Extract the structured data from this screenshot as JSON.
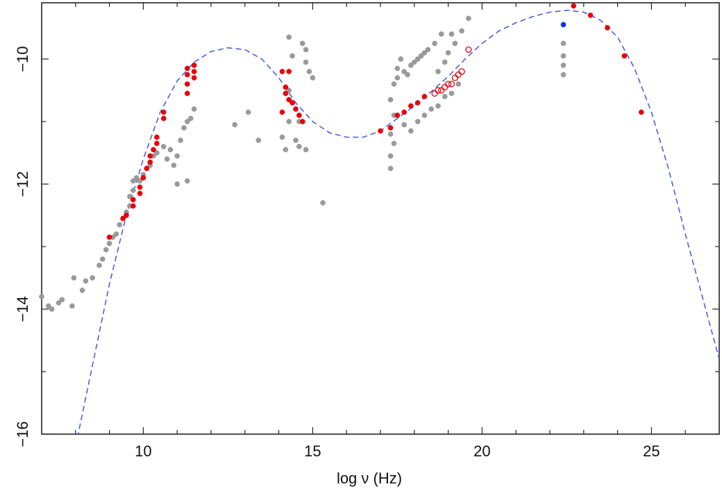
{
  "chart_data": {
    "type": "scatter",
    "title": "",
    "xlabel": "log ν (Hz)",
    "ylabel": "",
    "xlim": [
      7,
      27
    ],
    "ylim": [
      -16,
      -9.1
    ],
    "xticks": [
      10,
      15,
      20,
      25
    ],
    "xtick_labels": [
      "10",
      "15",
      "20",
      "25"
    ],
    "yticks": [
      -16,
      -14,
      -12,
      -10
    ],
    "ytick_labels": [
      "−16",
      "−14",
      "−12",
      "−10"
    ],
    "grid": false,
    "colors": {
      "archival": "#9a9a9a",
      "simultaneous": "#e8000b",
      "gamma_blue": "#1030e0",
      "model_curve": "#4a5fe0"
    },
    "series": [
      {
        "style": "archival-grey-filled",
        "color": "#9a9a9a",
        "points": [
          [
            7.0,
            -13.8
          ],
          [
            7.2,
            -13.95
          ],
          [
            7.3,
            -14.0
          ],
          [
            7.5,
            -13.9
          ],
          [
            7.6,
            -13.85
          ],
          [
            7.9,
            -13.95
          ],
          [
            7.95,
            -13.5
          ],
          [
            8.2,
            -13.7
          ],
          [
            8.3,
            -13.55
          ],
          [
            8.5,
            -13.5
          ],
          [
            8.7,
            -13.3
          ],
          [
            8.8,
            -13.2
          ],
          [
            8.9,
            -13.05
          ],
          [
            9.0,
            -12.95
          ],
          [
            9.1,
            -12.85
          ],
          [
            9.2,
            -12.8
          ],
          [
            9.3,
            -12.65
          ],
          [
            9.4,
            -12.55
          ],
          [
            9.5,
            -12.45
          ],
          [
            9.6,
            -12.35
          ],
          [
            9.6,
            -12.2
          ],
          [
            9.7,
            -12.1
          ],
          [
            9.7,
            -11.95
          ],
          [
            9.8,
            -11.9
          ],
          [
            9.9,
            -11.95
          ],
          [
            10.0,
            -11.85
          ],
          [
            10.1,
            -11.75
          ],
          [
            10.2,
            -11.7
          ],
          [
            10.3,
            -11.55
          ],
          [
            10.4,
            -11.5
          ],
          [
            10.6,
            -11.4
          ],
          [
            10.7,
            -11.6
          ],
          [
            10.8,
            -11.45
          ],
          [
            10.9,
            -11.7
          ],
          [
            11.0,
            -11.55
          ],
          [
            11.1,
            -11.3
          ],
          [
            11.2,
            -11.1
          ],
          [
            11.3,
            -11.0
          ],
          [
            11.4,
            -10.95
          ],
          [
            11.5,
            -10.8
          ],
          [
            11.0,
            -12.0
          ],
          [
            11.3,
            -11.95
          ],
          [
            12.7,
            -11.05
          ],
          [
            13.1,
            -10.85
          ],
          [
            13.4,
            -11.3
          ],
          [
            14.1,
            -11.25
          ],
          [
            14.2,
            -11.45
          ],
          [
            14.3,
            -11.0
          ],
          [
            14.3,
            -9.65
          ],
          [
            14.4,
            -9.95
          ],
          [
            14.5,
            -11.3
          ],
          [
            14.6,
            -11.4
          ],
          [
            14.7,
            -9.75
          ],
          [
            14.8,
            -9.85
          ],
          [
            14.8,
            -10.05
          ],
          [
            14.9,
            -10.2
          ],
          [
            15.0,
            -10.3
          ],
          [
            14.6,
            -11.0
          ],
          [
            14.8,
            -11.45
          ],
          [
            14.3,
            -10.5
          ],
          [
            15.3,
            -12.3
          ],
          [
            17.3,
            -11.75
          ],
          [
            17.3,
            -11.55
          ],
          [
            17.4,
            -11.35
          ],
          [
            17.3,
            -11.2
          ],
          [
            17.4,
            -10.9
          ],
          [
            17.3,
            -10.65
          ],
          [
            17.4,
            -10.4
          ],
          [
            17.5,
            -10.15
          ],
          [
            17.5,
            -10.3
          ],
          [
            17.6,
            -10.0
          ],
          [
            17.7,
            -10.2
          ],
          [
            17.8,
            -10.25
          ],
          [
            17.9,
            -10.1
          ],
          [
            18.0,
            -10.05
          ],
          [
            18.1,
            -10.0
          ],
          [
            18.2,
            -9.95
          ],
          [
            18.3,
            -9.9
          ],
          [
            18.4,
            -9.85
          ],
          [
            17.7,
            -11.05
          ],
          [
            17.9,
            -11.15
          ],
          [
            18.1,
            -11.0
          ],
          [
            18.3,
            -10.9
          ],
          [
            18.5,
            -10.8
          ],
          [
            18.6,
            -9.75
          ],
          [
            18.7,
            -10.2
          ],
          [
            18.8,
            -9.6
          ],
          [
            18.9,
            -10.05
          ],
          [
            19.0,
            -9.9
          ],
          [
            19.1,
            -9.6
          ],
          [
            19.2,
            -9.75
          ],
          [
            19.4,
            -9.55
          ],
          [
            19.6,
            -9.35
          ],
          [
            18.7,
            -10.75
          ],
          [
            18.9,
            -10.6
          ],
          [
            19.1,
            -10.55
          ],
          [
            19.3,
            -10.4
          ],
          [
            22.4,
            -9.75
          ],
          [
            22.4,
            -9.95
          ],
          [
            22.4,
            -10.1
          ],
          [
            22.4,
            -10.25
          ]
        ]
      },
      {
        "style": "simultaneous-red-filled",
        "color": "#e8000b",
        "points": [
          [
            9.0,
            -12.85
          ],
          [
            9.4,
            -12.55
          ],
          [
            9.5,
            -12.5
          ],
          [
            9.7,
            -12.35
          ],
          [
            9.7,
            -12.25
          ],
          [
            9.9,
            -12.15
          ],
          [
            9.9,
            -12.05
          ],
          [
            10.0,
            -11.9
          ],
          [
            10.1,
            -11.75
          ],
          [
            10.2,
            -11.65
          ],
          [
            10.2,
            -11.55
          ],
          [
            10.3,
            -11.45
          ],
          [
            10.4,
            -11.35
          ],
          [
            10.4,
            -11.25
          ],
          [
            10.6,
            -10.95
          ],
          [
            10.6,
            -10.85
          ],
          [
            11.3,
            -10.55
          ],
          [
            11.3,
            -10.4
          ],
          [
            11.3,
            -10.25
          ],
          [
            11.3,
            -10.15
          ],
          [
            11.5,
            -10.3
          ],
          [
            11.5,
            -10.2
          ],
          [
            11.5,
            -10.1
          ],
          [
            14.1,
            -10.2
          ],
          [
            14.2,
            -10.45
          ],
          [
            14.2,
            -10.55
          ],
          [
            14.3,
            -10.65
          ],
          [
            14.4,
            -10.7
          ],
          [
            14.5,
            -10.8
          ],
          [
            14.6,
            -10.9
          ],
          [
            14.3,
            -10.2
          ],
          [
            14.7,
            -11.0
          ],
          [
            14.1,
            -10.85
          ],
          [
            17.0,
            -11.15
          ],
          [
            17.3,
            -11.1
          ],
          [
            17.5,
            -10.9
          ],
          [
            17.7,
            -10.85
          ],
          [
            17.9,
            -10.75
          ],
          [
            18.1,
            -10.7
          ],
          [
            18.3,
            -10.6
          ],
          [
            22.7,
            -9.15
          ],
          [
            23.2,
            -9.3
          ],
          [
            23.7,
            -9.5
          ],
          [
            24.2,
            -9.95
          ],
          [
            24.7,
            -10.85
          ]
        ]
      },
      {
        "style": "simultaneous-red-open",
        "color": "#e8000b",
        "points": [
          [
            18.6,
            -10.55
          ],
          [
            18.7,
            -10.5
          ],
          [
            18.8,
            -10.5
          ],
          [
            18.9,
            -10.45
          ],
          [
            19.0,
            -10.4
          ],
          [
            19.1,
            -10.4
          ],
          [
            19.2,
            -10.3
          ],
          [
            19.3,
            -10.25
          ],
          [
            19.4,
            -10.2
          ],
          [
            19.6,
            -9.85
          ]
        ]
      },
      {
        "style": "gamma-blue-filled",
        "color": "#1030e0",
        "points": [
          [
            22.4,
            -9.45
          ]
        ]
      }
    ],
    "model_curve": {
      "style": "dashed",
      "color": "#4a5fe0",
      "points": [
        [
          8.0,
          -16.2
        ],
        [
          8.5,
          -14.9
        ],
        [
          9.0,
          -13.6
        ],
        [
          9.5,
          -12.5
        ],
        [
          10.0,
          -11.6
        ],
        [
          10.5,
          -10.85
        ],
        [
          11.0,
          -10.35
        ],
        [
          11.5,
          -10.05
        ],
        [
          12.0,
          -9.88
        ],
        [
          12.5,
          -9.82
        ],
        [
          13.0,
          -9.85
        ],
        [
          13.5,
          -10.0
        ],
        [
          14.0,
          -10.3
        ],
        [
          14.5,
          -10.7
        ],
        [
          15.0,
          -11.0
        ],
        [
          15.5,
          -11.18
        ],
        [
          16.0,
          -11.25
        ],
        [
          16.5,
          -11.25
        ],
        [
          17.0,
          -11.15
        ],
        [
          17.5,
          -10.95
        ],
        [
          18.0,
          -10.75
        ],
        [
          18.5,
          -10.52
        ],
        [
          19.0,
          -10.28
        ],
        [
          19.5,
          -10.0
        ],
        [
          20.0,
          -9.75
        ],
        [
          20.5,
          -9.55
        ],
        [
          21.0,
          -9.42
        ],
        [
          21.5,
          -9.32
        ],
        [
          22.0,
          -9.25
        ],
        [
          22.5,
          -9.22
        ],
        [
          23.0,
          -9.25
        ],
        [
          23.5,
          -9.38
        ],
        [
          24.0,
          -9.65
        ],
        [
          24.5,
          -10.15
        ],
        [
          25.0,
          -10.85
        ],
        [
          25.5,
          -11.75
        ],
        [
          26.0,
          -12.8
        ],
        [
          26.5,
          -13.8
        ],
        [
          27.0,
          -14.8
        ]
      ]
    }
  }
}
